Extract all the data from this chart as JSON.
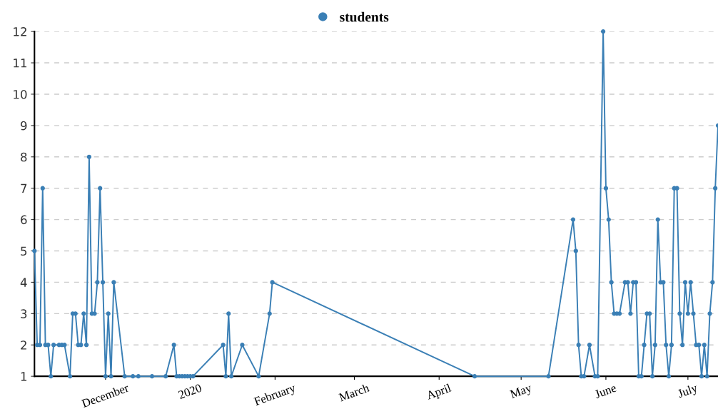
{
  "chart_data": {
    "type": "line",
    "legend": "top",
    "grid": "y",
    "marker": "circle",
    "line_style": "solid",
    "xlim": [
      "2019-11-05",
      "2020-07-12"
    ],
    "ylim": [
      1,
      12
    ],
    "yticks": [
      1,
      2,
      3,
      4,
      5,
      6,
      7,
      8,
      9,
      10,
      11,
      12
    ],
    "xticks": [
      {
        "value": "2019-12-01",
        "label": "December"
      },
      {
        "value": "2020-01-01",
        "label": "2020"
      },
      {
        "value": "2020-02-01",
        "label": "February"
      },
      {
        "value": "2020-03-01",
        "label": "March"
      },
      {
        "value": "2020-04-01",
        "label": "April"
      },
      {
        "value": "2020-05-01",
        "label": "May"
      },
      {
        "value": "2020-06-01",
        "label": "June"
      },
      {
        "value": "2020-07-01",
        "label": "July"
      }
    ],
    "series": [
      {
        "name": "students",
        "color": "#3a7fb5",
        "x": [
          "2019-11-05",
          "2019-11-06",
          "2019-11-07",
          "2019-11-08",
          "2019-11-09",
          "2019-11-10",
          "2019-11-11",
          "2019-11-12",
          "2019-11-14",
          "2019-11-15",
          "2019-11-16",
          "2019-11-18",
          "2019-11-19",
          "2019-11-20",
          "2019-11-21",
          "2019-11-22",
          "2019-11-23",
          "2019-11-24",
          "2019-11-25",
          "2019-11-26",
          "2019-11-27",
          "2019-11-28",
          "2019-11-29",
          "2019-11-30",
          "2019-12-01",
          "2019-12-02",
          "2019-12-03",
          "2019-12-04",
          "2019-12-08",
          "2019-12-11",
          "2019-12-13",
          "2019-12-18",
          "2019-12-23",
          "2019-12-26",
          "2019-12-27",
          "2019-12-28",
          "2019-12-29",
          "2019-12-30",
          "2019-12-31",
          "2020-01-01",
          "2020-01-02",
          "2020-01-13",
          "2020-01-14",
          "2020-01-15",
          "2020-01-16",
          "2020-01-20",
          "2020-01-26",
          "2020-01-30",
          "2020-01-31",
          "2020-04-14",
          "2020-05-11",
          "2020-05-20",
          "2020-05-21",
          "2020-05-22",
          "2020-05-23",
          "2020-05-24",
          "2020-05-26",
          "2020-05-28",
          "2020-05-29",
          "2020-05-31",
          "2020-06-01",
          "2020-06-02",
          "2020-06-03",
          "2020-06-04",
          "2020-06-05",
          "2020-06-06",
          "2020-06-08",
          "2020-06-09",
          "2020-06-10",
          "2020-06-11",
          "2020-06-12",
          "2020-06-13",
          "2020-06-14",
          "2020-06-15",
          "2020-06-16",
          "2020-06-17",
          "2020-06-18",
          "2020-06-19",
          "2020-06-20",
          "2020-06-21",
          "2020-06-22",
          "2020-06-23",
          "2020-06-24",
          "2020-06-25",
          "2020-06-26",
          "2020-06-27",
          "2020-06-28",
          "2020-06-29",
          "2020-06-30",
          "2020-07-01",
          "2020-07-02",
          "2020-07-03",
          "2020-07-04",
          "2020-07-05",
          "2020-07-06",
          "2020-07-07",
          "2020-07-08",
          "2020-07-09",
          "2020-07-10",
          "2020-07-11",
          "2020-07-12"
        ],
        "values": [
          5,
          2,
          2,
          7,
          2,
          2,
          1,
          2,
          2,
          2,
          2,
          1,
          3,
          3,
          2,
          2,
          3,
          2,
          8,
          3,
          3,
          4,
          7,
          4,
          1,
          3,
          1,
          4,
          1,
          1,
          1,
          1,
          1,
          2,
          1,
          1,
          1,
          1,
          1,
          1,
          1,
          2,
          1,
          3,
          1,
          2,
          1,
          3,
          4,
          1,
          1,
          6,
          5,
          2,
          1,
          1,
          2,
          1,
          1,
          12,
          7,
          6,
          4,
          3,
          3,
          3,
          4,
          4,
          3,
          4,
          4,
          1,
          1,
          2,
          3,
          3,
          1,
          2,
          6,
          4,
          4,
          2,
          1,
          2,
          7,
          7,
          3,
          2,
          4,
          3,
          4,
          3,
          2,
          2,
          1,
          2,
          1,
          3,
          4,
          7,
          9
        ]
      }
    ]
  }
}
